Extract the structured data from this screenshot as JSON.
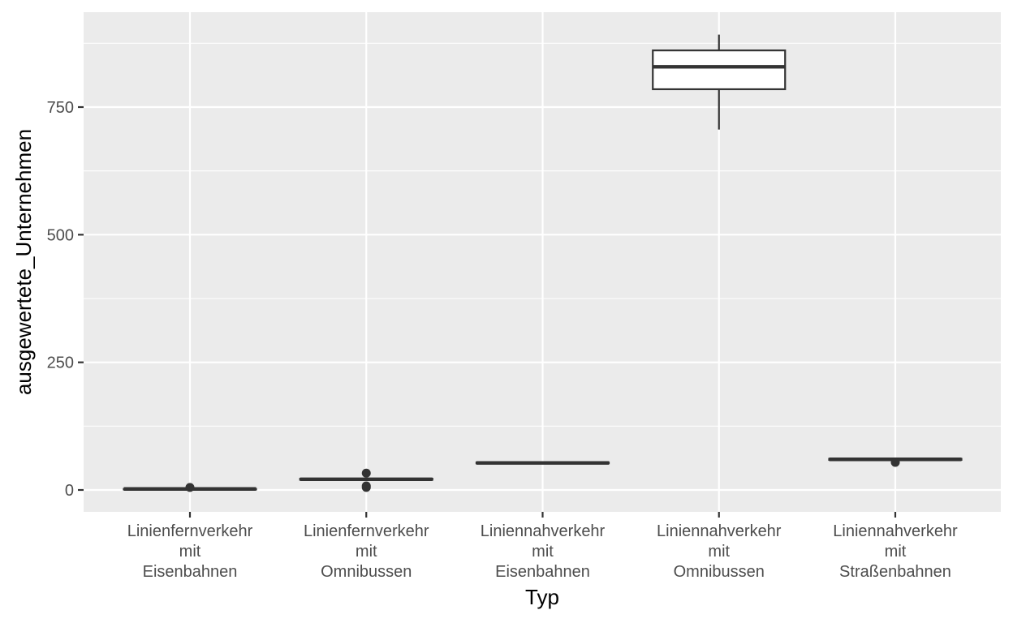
{
  "chart_data": {
    "type": "box",
    "xlabel": "Typ",
    "ylabel": "ausgewertete_Unternehmen",
    "ylim": [
      -42,
      940
    ],
    "y_ticks": [
      0,
      250,
      500,
      750
    ],
    "y_tick_labels": [
      "0",
      "250",
      "500",
      "750"
    ],
    "grid": true,
    "categories": [
      "Linienfernverkehr mit Eisenbahnen",
      "Linienfernverkehr mit Omnibussen",
      "Liniennahverkehr mit Eisenbahnen",
      "Liniennahverkehr mit Omnibussen",
      "Liniennahverkehr mit Straßenbahnen"
    ],
    "category_label_lines": [
      [
        "Linienfernverkehr",
        "mit",
        "Eisenbahnen"
      ],
      [
        "Linienfernverkehr",
        "mit",
        "Omnibussen"
      ],
      [
        "Liniennahverkehr",
        "mit",
        "Eisenbahnen"
      ],
      [
        "Liniennahverkehr",
        "mit",
        "Omnibussen"
      ],
      [
        "Liniennahverkehr",
        "mit",
        "Straßenbahnen"
      ]
    ],
    "boxes": [
      {
        "category": "Linienfernverkehr mit Eisenbahnen",
        "min": 1,
        "q1": 1,
        "median": 2,
        "q3": 2,
        "max": 3,
        "outliers": [
          5
        ]
      },
      {
        "category": "Linienfernverkehr mit Omnibussen",
        "min": 20,
        "q1": 20,
        "median": 21,
        "q3": 22,
        "max": 22,
        "outliers": [
          33,
          8,
          5
        ]
      },
      {
        "category": "Liniennahverkehr mit Eisenbahnen",
        "min": 52,
        "q1": 52,
        "median": 53,
        "q3": 54,
        "max": 54,
        "outliers": []
      },
      {
        "category": "Liniennahverkehr mit Omnibussen",
        "min": 706,
        "q1": 785,
        "median": 829,
        "q3": 861,
        "max": 892,
        "outliers": []
      },
      {
        "category": "Liniennahverkehr mit Straßenbahnen",
        "min": 59,
        "q1": 59,
        "median": 60,
        "q3": 61,
        "max": 61,
        "outliers": [
          54
        ]
      }
    ],
    "colors": {
      "panel_background": "#ebebeb",
      "grid_major": "#ffffff",
      "box_line": "#333333",
      "box_fill": "#ffffff",
      "tick_text": "#4d4d4d",
      "title_text": "#000000"
    }
  }
}
